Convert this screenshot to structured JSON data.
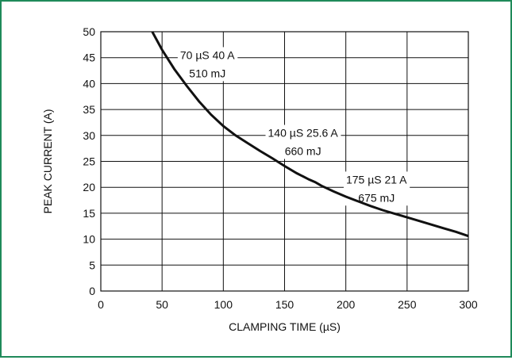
{
  "colors": {
    "frame": "#1f8a5a",
    "curve": "#111111",
    "grid": "#111111"
  },
  "chart_data": {
    "type": "line",
    "title": "",
    "xlabel": "CLAMPING TIME (µS)",
    "ylabel": "PEAK CURRENT (A)",
    "xlim": [
      0,
      300
    ],
    "ylim": [
      0,
      50
    ],
    "x_ticks": [
      0,
      50,
      100,
      150,
      200,
      250,
      300
    ],
    "y_ticks": [
      0,
      5,
      10,
      15,
      20,
      25,
      30,
      35,
      40,
      45,
      50
    ],
    "grid": true,
    "series": [
      {
        "x": [
          42,
          50,
          60,
          70,
          80,
          90,
          100,
          110,
          120,
          130,
          140,
          150,
          160,
          170,
          175,
          180,
          190,
          200,
          210,
          220,
          230,
          240,
          250,
          260,
          270,
          280,
          290,
          300
        ],
        "y": [
          50,
          46.5,
          42.8,
          39.6,
          36.6,
          34.0,
          31.8,
          30.0,
          28.5,
          27.0,
          25.6,
          24.1,
          22.7,
          21.5,
          21.0,
          20.3,
          19.2,
          18.2,
          17.3,
          16.4,
          15.6,
          14.9,
          14.2,
          13.5,
          12.8,
          12.1,
          11.4,
          10.6
        ]
      }
    ],
    "annotations": [
      {
        "line1": "70 µS 40 A",
        "line2": "510 mJ",
        "x": 87,
        "y1": 45.5,
        "y2": 42
      },
      {
        "line1": "140 µS 25.6 A",
        "line2": "660 mJ",
        "x": 165,
        "y1": 30.5,
        "y2": 27
      },
      {
        "line1": "175 µS 21 A",
        "line2": "675 mJ",
        "x": 225,
        "y1": 21.5,
        "y2": 18
      }
    ]
  }
}
